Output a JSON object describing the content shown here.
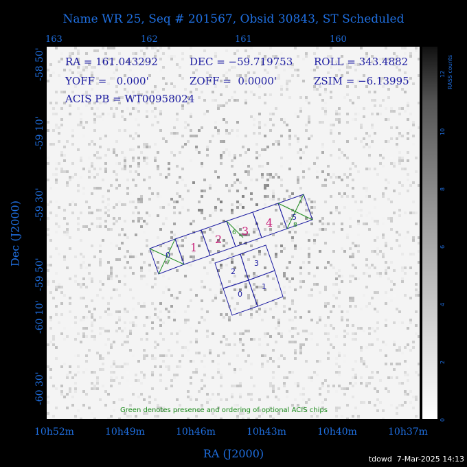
{
  "title": "Name WR 25, Seq # 201567, Obsid 30843, ST Scheduled",
  "axes": {
    "top_ticks": [
      "163",
      "162",
      "161",
      "160"
    ],
    "bottom_ticks": [
      "10h52m",
      "10h49m",
      "10h46m",
      "10h43m",
      "10h40m",
      "10h37m"
    ],
    "left_ticks": [
      "-58 50'",
      "-59 10'",
      "-59 30'",
      "-59 50'",
      "-60 10'",
      "-60 30'"
    ],
    "x_label": "RA (J2000)",
    "y_label": "Dec (J2000)"
  },
  "info": {
    "ra": "RA = 161.043292",
    "dec": "DEC = −59.719753",
    "roll": "ROLL = 343.4882",
    "yoff": "YOFF =   0.000'",
    "zoff": "ZOFF =  0.0000'",
    "zsim": "ZSIM = −6.13995",
    "acis_pb": "ACIS PB = WT00958024"
  },
  "chips": {
    "acis_s": [
      "0",
      "1",
      "2",
      "3",
      "4",
      "5"
    ],
    "acis_i": [
      "0",
      "1",
      "2",
      "3"
    ],
    "optional_s": [
      "6",
      "7",
      "8"
    ]
  },
  "note": "Green denotes presence and ordering of optional ACIS chips",
  "colorbar": {
    "label": "RASS counts",
    "ticks": [
      "0",
      "2",
      "4",
      "6",
      "8",
      "10",
      "12"
    ],
    "max_label": "",
    "colors": {
      "low": "#ffffff",
      "high": "#111111"
    }
  },
  "colors": {
    "axis_text": "#1f6fe0",
    "chip_outline": "#1a1aa0",
    "chip_label_s": "#c8207a",
    "optional": "#1a8a1a"
  },
  "footer": "tdowd  7-Mar-2025 14:13"
}
